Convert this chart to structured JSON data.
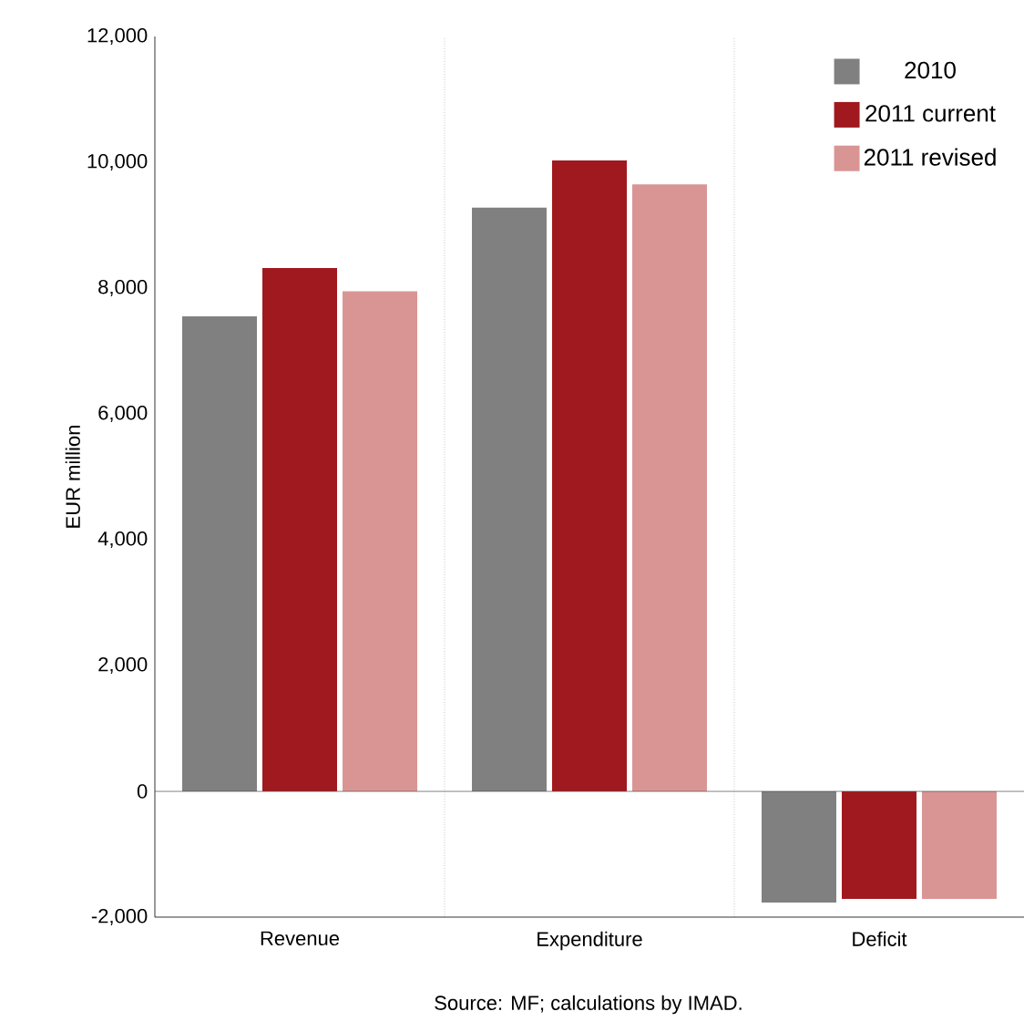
{
  "chart_data": {
    "type": "bar",
    "ylabel": "EUR million",
    "categories": [
      "Revenue",
      "Expenditure",
      "Deficit"
    ],
    "series": [
      {
        "name": "2010",
        "color": "#808080",
        "values": [
          7550,
          9280,
          -1770
        ]
      },
      {
        "name": "2011 current",
        "color": "#a0191e",
        "values": [
          8320,
          10030,
          -1710
        ]
      },
      {
        "name": "2011 revised",
        "color": "#d99594",
        "values": [
          7950,
          9650,
          -1710
        ]
      }
    ],
    "ylim": [
      -2000,
      12000
    ],
    "yticks": [
      {
        "value": -2000,
        "label": "-2,000"
      },
      {
        "value": 0,
        "label": "0"
      },
      {
        "value": 2000,
        "label": "2,000"
      },
      {
        "value": 4000,
        "label": "4,000"
      },
      {
        "value": 6000,
        "label": "6,000"
      },
      {
        "value": 8000,
        "label": "8,000"
      },
      {
        "value": 10000,
        "label": "10,000"
      },
      {
        "value": 12000,
        "label": "12,000"
      }
    ],
    "grid": "x",
    "legend": "top right",
    "annotations": [
      "Source: MF; calculations by IMAD."
    ]
  }
}
